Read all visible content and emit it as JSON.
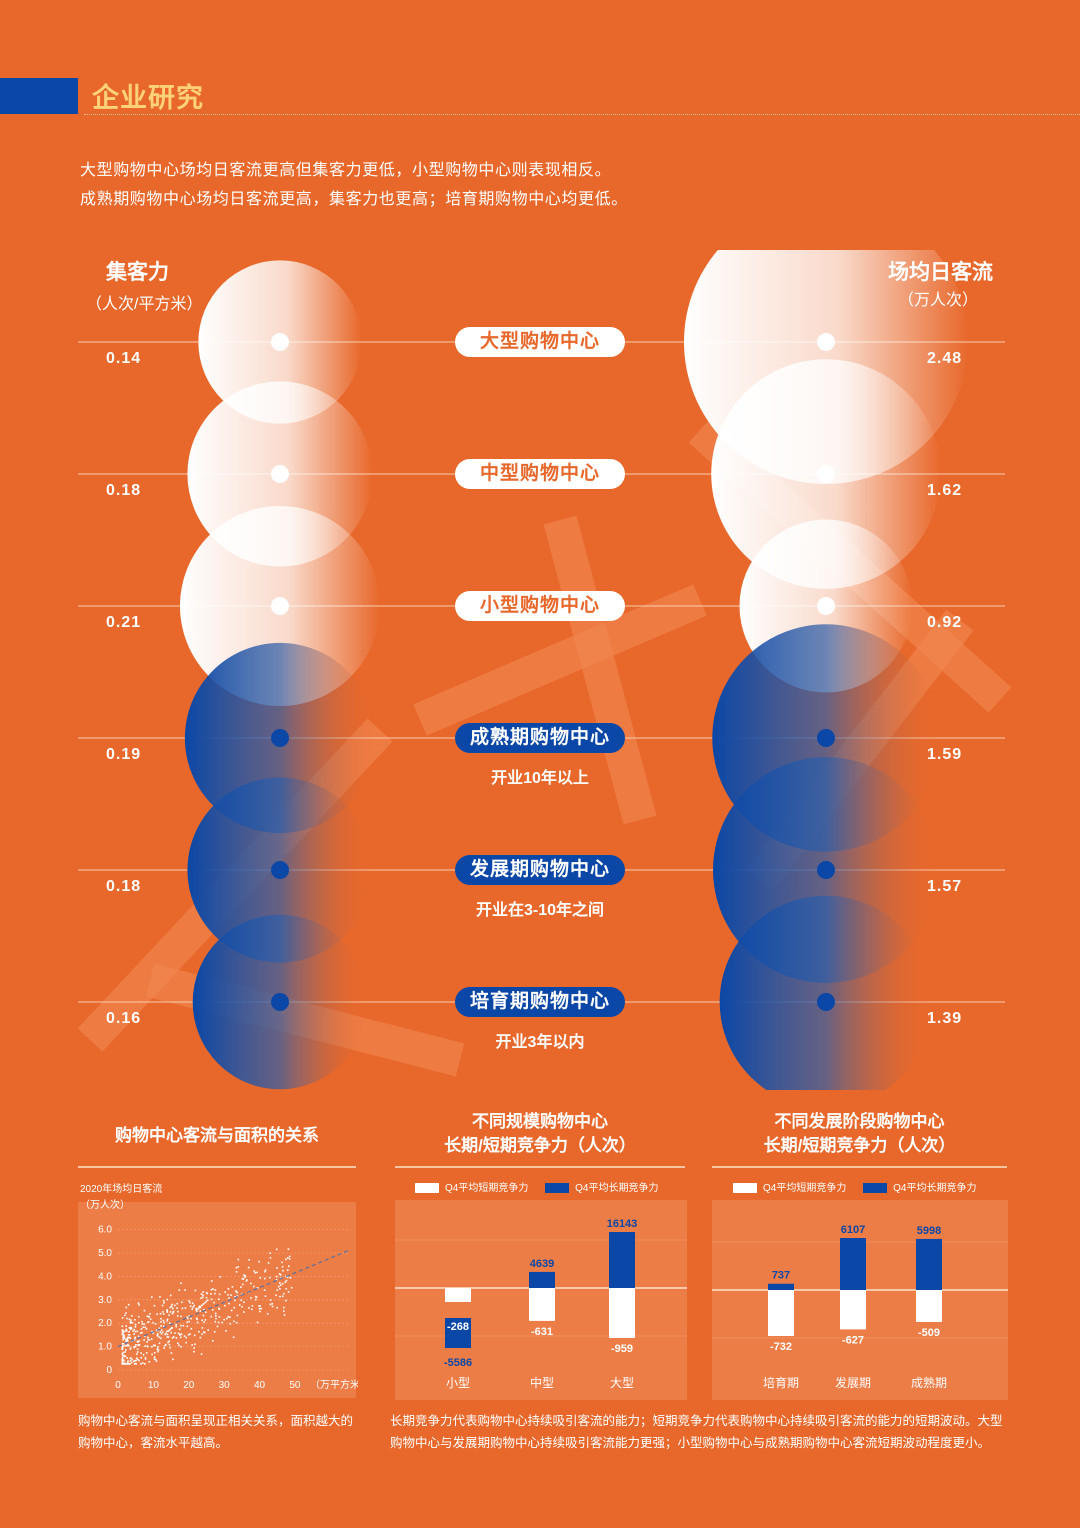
{
  "header": {
    "title": "企业研究"
  },
  "intro": [
    "大型购物中心场均日客流更高但集客力更低，小型购物中心则表现相反。",
    "成熟期购物中心场均日客流更高，集客力也更高；培育期购物中心均更低。"
  ],
  "left_axis": {
    "title": "集客力",
    "unit": "（人次/平方米）"
  },
  "right_axis": {
    "title": "场均日客流",
    "unit": "（万人次）"
  },
  "colors": {
    "background": "#e8682b",
    "blue": "#0b47a6",
    "white": "#ffffff",
    "title_yellow": "#ffd27a"
  },
  "rows": [
    {
      "label": "大型购物中心",
      "sub": "",
      "left": "0.14",
      "right": "2.48",
      "group": "size"
    },
    {
      "label": "中型购物中心",
      "sub": "",
      "left": "0.18",
      "right": "1.62",
      "group": "size"
    },
    {
      "label": "小型购物中心",
      "sub": "",
      "left": "0.21",
      "right": "0.92",
      "group": "size"
    },
    {
      "label": "成熟期购物中心",
      "sub": "开业10年以上",
      "left": "0.19",
      "right": "1.59",
      "group": "stage"
    },
    {
      "label": "发展期购物中心",
      "sub": "开业在3-10年之间",
      "left": "0.18",
      "right": "1.57",
      "group": "stage"
    },
    {
      "label": "培育期购物中心",
      "sub": "开业3年以内",
      "left": "0.16",
      "right": "1.39",
      "group": "stage"
    }
  ],
  "chart_data": [
    {
      "type": "bubble",
      "title": "",
      "categories": [
        "大型购物中心",
        "中型购物中心",
        "小型购物中心",
        "成熟期购物中心",
        "发展期购物中心",
        "培育期购物中心"
      ],
      "series": [
        {
          "name": "集客力",
          "values": [
            0.14,
            0.18,
            0.21,
            0.19,
            0.18,
            0.16
          ]
        },
        {
          "name": "场均日客流",
          "values": [
            2.48,
            1.62,
            0.92,
            1.59,
            1.57,
            1.39
          ]
        }
      ]
    },
    {
      "type": "scatter",
      "title": "购物中心客流与面积的关系",
      "ylabel": "2020年场均日客流",
      "yunit": "（万人次）",
      "xunit": "（万平方米）",
      "xticks": [
        "0",
        "10",
        "20",
        "30",
        "40",
        "50"
      ],
      "yticks": [
        "0",
        "1.0",
        "2.0",
        "3.0",
        "4.0",
        "5.0",
        "6.0"
      ],
      "xlim": [
        0,
        65
      ],
      "ylim": [
        0,
        6.5
      ],
      "trend": {
        "style": "dashed",
        "from": [
          0,
          1.0
        ],
        "to": [
          65,
          5.1
        ]
      }
    },
    {
      "type": "bar",
      "title": "不同规模购物中心",
      "title2": "长期/短期竞争力（人次）",
      "categories": [
        "小型",
        "中型",
        "大型"
      ],
      "series": [
        {
          "name": "Q4平均短期竞争力",
          "values": [
            -268,
            -631,
            -959
          ]
        },
        {
          "name": "Q4平均长期竞争力",
          "values": [
            -5586,
            4639,
            16143
          ]
        }
      ],
      "labels": {
        "short": [
          "-268",
          "-631",
          "-959"
        ],
        "long": [
          "-5586",
          "4639",
          "16143"
        ]
      }
    },
    {
      "type": "bar",
      "title": "不同发展阶段购物中心",
      "title2": "长期/短期竞争力（人次）",
      "categories": [
        "培育期",
        "发展期",
        "成熟期"
      ],
      "series": [
        {
          "name": "Q4平均短期竞争力",
          "values": [
            -732,
            -627,
            -509
          ]
        },
        {
          "name": "Q4平均长期竞争力",
          "values": [
            737,
            6107,
            5998
          ]
        }
      ],
      "labels": {
        "short": [
          "-732",
          "-627",
          "-509"
        ],
        "long": [
          "737",
          "6107",
          "5998"
        ]
      }
    }
  ],
  "captions": {
    "scatter": [
      "购物中心客流与面积呈现正相关关系，面积越大的",
      "购物中心，客流水平越高。"
    ],
    "bars": [
      "长期竞争力代表购物中心持续吸引客流的能力；短期竞争力代表购物中心持续吸引客流的能力的短期波动。大型",
      "购物中心与发展期购物中心持续吸引客流能力更强；小型购物中心与成熟期购物中心客流短期波动程度更小。"
    ]
  }
}
